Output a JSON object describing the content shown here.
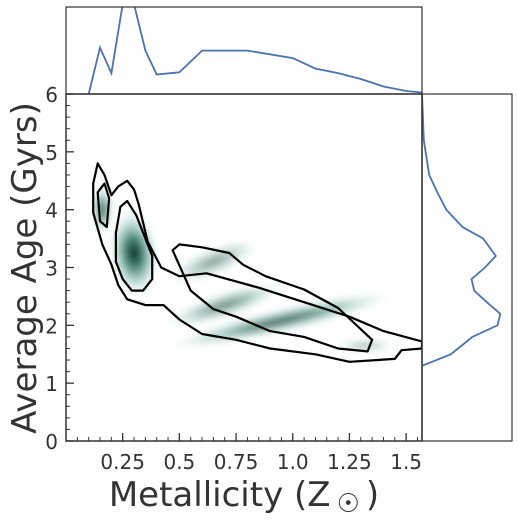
{
  "chart_data": {
    "type": "joint-kde",
    "xlabel": "Metallicity (Z",
    "xlabel_symbol": "☉",
    "xlabel_close": ")",
    "ylabel": "Average Age (Gyrs)",
    "xlim": [
      0.0,
      1.57
    ],
    "ylim": [
      0,
      6
    ],
    "x_ticks": [
      {
        "value": 0.25,
        "label": "0.25"
      },
      {
        "value": 0.5,
        "label": "0.5"
      },
      {
        "value": 0.75,
        "label": "0.75"
      },
      {
        "value": 1.0,
        "label": "1.0"
      },
      {
        "value": 1.25,
        "label": "1.25"
      },
      {
        "value": 1.5,
        "label": "1.5"
      }
    ],
    "y_ticks": [
      {
        "value": 0,
        "label": "0"
      },
      {
        "value": 1,
        "label": "1"
      },
      {
        "value": 2,
        "label": "2"
      },
      {
        "value": 3,
        "label": "3"
      },
      {
        "value": 4,
        "label": "4"
      },
      {
        "value": 5,
        "label": "5"
      },
      {
        "value": 6,
        "label": "6"
      }
    ],
    "x_marginal": {
      "x": [
        0.1,
        0.15,
        0.2,
        0.25,
        0.3,
        0.35,
        0.4,
        0.5,
        0.6,
        0.8,
        1.0,
        1.1,
        1.2,
        1.3,
        1.4,
        1.5,
        1.57
      ],
      "density": [
        0.0,
        0.62,
        0.28,
        1.2,
        1.2,
        0.58,
        0.26,
        0.29,
        0.58,
        0.58,
        0.48,
        0.34,
        0.28,
        0.2,
        0.1,
        0.04,
        0.02
      ]
    },
    "y_marginal": {
      "y": [
        6.0,
        5.2,
        4.6,
        4.3,
        4.0,
        3.7,
        3.5,
        3.2,
        3.0,
        2.8,
        2.6,
        2.4,
        2.2,
        2.0,
        1.8,
        1.6,
        1.5,
        1.3
      ],
      "density": [
        0.0,
        0.02,
        0.08,
        0.17,
        0.27,
        0.45,
        0.68,
        0.82,
        0.7,
        0.55,
        0.58,
        0.72,
        0.87,
        0.84,
        0.56,
        0.4,
        0.32,
        0.0
      ]
    },
    "density_blobs": [
      {
        "cx": 0.3,
        "cy": 3.25,
        "sx": 0.055,
        "sy": 0.38,
        "rot": -6,
        "w": 1.0
      },
      {
        "cx": 0.16,
        "cy": 4.0,
        "sx": 0.025,
        "sy": 0.22,
        "rot": 0,
        "w": 0.75
      },
      {
        "cx": 0.65,
        "cy": 3.1,
        "sx": 0.11,
        "sy": 0.13,
        "rot": -22,
        "w": 0.45
      },
      {
        "cx": 0.95,
        "cy": 2.08,
        "sx": 0.26,
        "sy": 0.11,
        "rot": -13,
        "w": 0.72
      },
      {
        "cx": 0.7,
        "cy": 2.35,
        "sx": 0.14,
        "sy": 0.12,
        "rot": -18,
        "w": 0.55
      },
      {
        "cx": 1.32,
        "cy": 1.65,
        "sx": 0.07,
        "sy": 0.07,
        "rot": 0,
        "w": 0.3
      }
    ],
    "contours": [
      {
        "level": "outer",
        "points": [
          [
            0.12,
            3.95
          ],
          [
            0.12,
            4.45
          ],
          [
            0.14,
            4.8
          ],
          [
            0.17,
            4.6
          ],
          [
            0.2,
            4.25
          ],
          [
            0.23,
            4.4
          ],
          [
            0.27,
            4.5
          ],
          [
            0.3,
            4.35
          ],
          [
            0.32,
            4.1
          ],
          [
            0.36,
            3.45
          ],
          [
            0.42,
            3.0
          ],
          [
            0.5,
            2.85
          ],
          [
            0.62,
            2.9
          ],
          [
            0.85,
            2.65
          ],
          [
            1.05,
            2.4
          ],
          [
            1.25,
            2.15
          ],
          [
            1.4,
            1.9
          ],
          [
            1.57,
            1.72
          ],
          [
            1.57,
            1.6
          ],
          [
            1.48,
            1.57
          ],
          [
            1.45,
            1.42
          ],
          [
            1.25,
            1.37
          ],
          [
            1.1,
            1.5
          ],
          [
            0.9,
            1.6
          ],
          [
            0.75,
            1.75
          ],
          [
            0.6,
            1.85
          ],
          [
            0.5,
            2.1
          ],
          [
            0.43,
            2.35
          ],
          [
            0.35,
            2.35
          ],
          [
            0.27,
            2.45
          ],
          [
            0.23,
            2.7
          ],
          [
            0.2,
            3.05
          ],
          [
            0.16,
            3.4
          ],
          [
            0.12,
            3.95
          ]
        ]
      },
      {
        "level": "inner-a",
        "points": [
          [
            0.15,
            3.8
          ],
          [
            0.14,
            4.3
          ],
          [
            0.17,
            4.45
          ],
          [
            0.19,
            4.2
          ],
          [
            0.18,
            3.7
          ],
          [
            0.15,
            3.8
          ]
        ]
      },
      {
        "level": "inner-b",
        "points": [
          [
            0.22,
            3.6
          ],
          [
            0.24,
            4.05
          ],
          [
            0.27,
            4.15
          ],
          [
            0.31,
            3.9
          ],
          [
            0.35,
            3.5
          ],
          [
            0.38,
            3.2
          ],
          [
            0.38,
            2.8
          ],
          [
            0.34,
            2.6
          ],
          [
            0.29,
            2.6
          ],
          [
            0.25,
            2.8
          ],
          [
            0.22,
            3.1
          ],
          [
            0.22,
            3.6
          ]
        ]
      },
      {
        "level": "inner-c",
        "points": [
          [
            0.47,
            3.3
          ],
          [
            0.5,
            3.4
          ],
          [
            0.6,
            3.35
          ],
          [
            0.72,
            3.25
          ],
          [
            0.78,
            3.05
          ],
          [
            0.88,
            2.85
          ],
          [
            1.05,
            2.62
          ],
          [
            1.2,
            2.3
          ],
          [
            1.35,
            1.75
          ],
          [
            1.33,
            1.55
          ],
          [
            1.2,
            1.6
          ],
          [
            1.05,
            1.8
          ],
          [
            0.9,
            1.9
          ],
          [
            0.75,
            2.15
          ],
          [
            0.65,
            2.28
          ],
          [
            0.55,
            2.6
          ],
          [
            0.47,
            3.3
          ]
        ]
      }
    ]
  }
}
